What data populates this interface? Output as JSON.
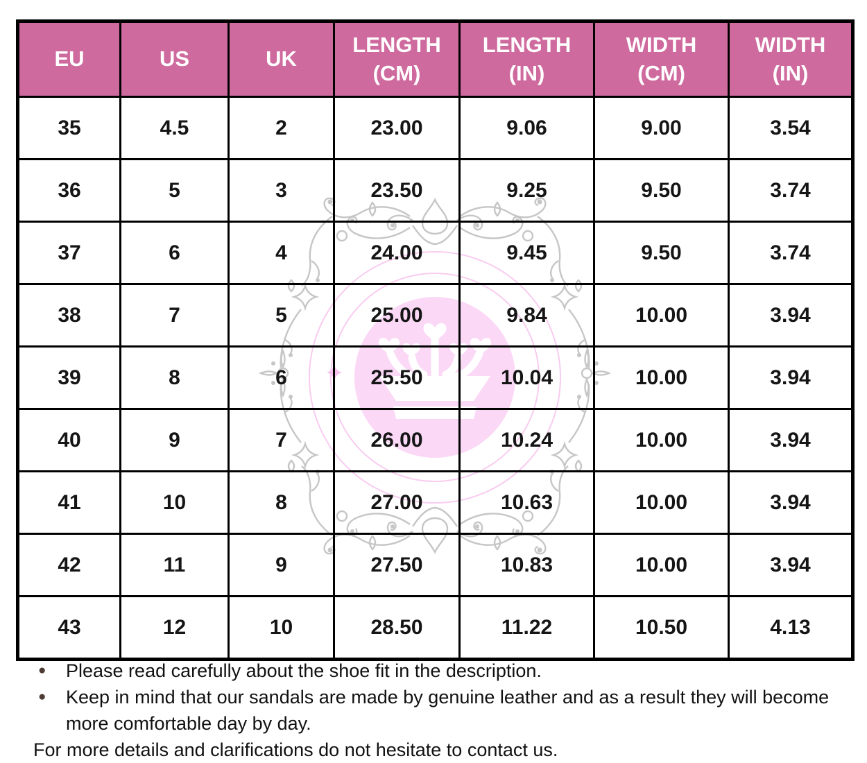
{
  "table": {
    "headers": [
      "EU",
      "US",
      "UK",
      "LENGTH (CM)",
      "LENGTH (IN)",
      "WIDTH (CM)",
      "WIDTH (IN)"
    ],
    "rows": [
      [
        "35",
        "4.5",
        "2",
        "23.00",
        "9.06",
        "9.00",
        "3.54"
      ],
      [
        "36",
        "5",
        "3",
        "23.50",
        "9.25",
        "9.50",
        "3.74"
      ],
      [
        "37",
        "6",
        "4",
        "24.00",
        "9.45",
        "9.50",
        "3.74"
      ],
      [
        "38",
        "7",
        "5",
        "25.00",
        "9.84",
        "10.00",
        "3.94"
      ],
      [
        "39",
        "8",
        "6",
        "25.50",
        "10.04",
        "10.00",
        "3.94"
      ],
      [
        "40",
        "9",
        "7",
        "26.00",
        "10.24",
        "10.00",
        "3.94"
      ],
      [
        "41",
        "10",
        "8",
        "27.00",
        "10.63",
        "10.00",
        "3.94"
      ],
      [
        "42",
        "11",
        "9",
        "27.50",
        "10.83",
        "10.00",
        "3.94"
      ],
      [
        "43",
        "12",
        "10",
        "28.50",
        "11.22",
        "10.50",
        "4.13"
      ]
    ]
  },
  "notes": {
    "bullets": [
      "Please read carefully about the shoe fit in the description.",
      "Keep in mind that our sandals are made by genuine leather and as a result they will become more comfortable day by day."
    ],
    "footer": "For more details and clarifications do not hesitate to contact us."
  },
  "icons": {
    "bullet": "●",
    "watermark": "crown-ornament-watermark"
  },
  "colors": {
    "header_bg": "#cf6a9e",
    "header_text": "#ffffff",
    "table_border": "#000000",
    "body_text": "#151515",
    "bullet_dot": "#4c3a33",
    "watermark_circle": "#fbd8f6",
    "watermark_ring": "#f8ccf0",
    "watermark_ornament": "#c6c6c6",
    "watermark_crown": "#ffffff"
  }
}
